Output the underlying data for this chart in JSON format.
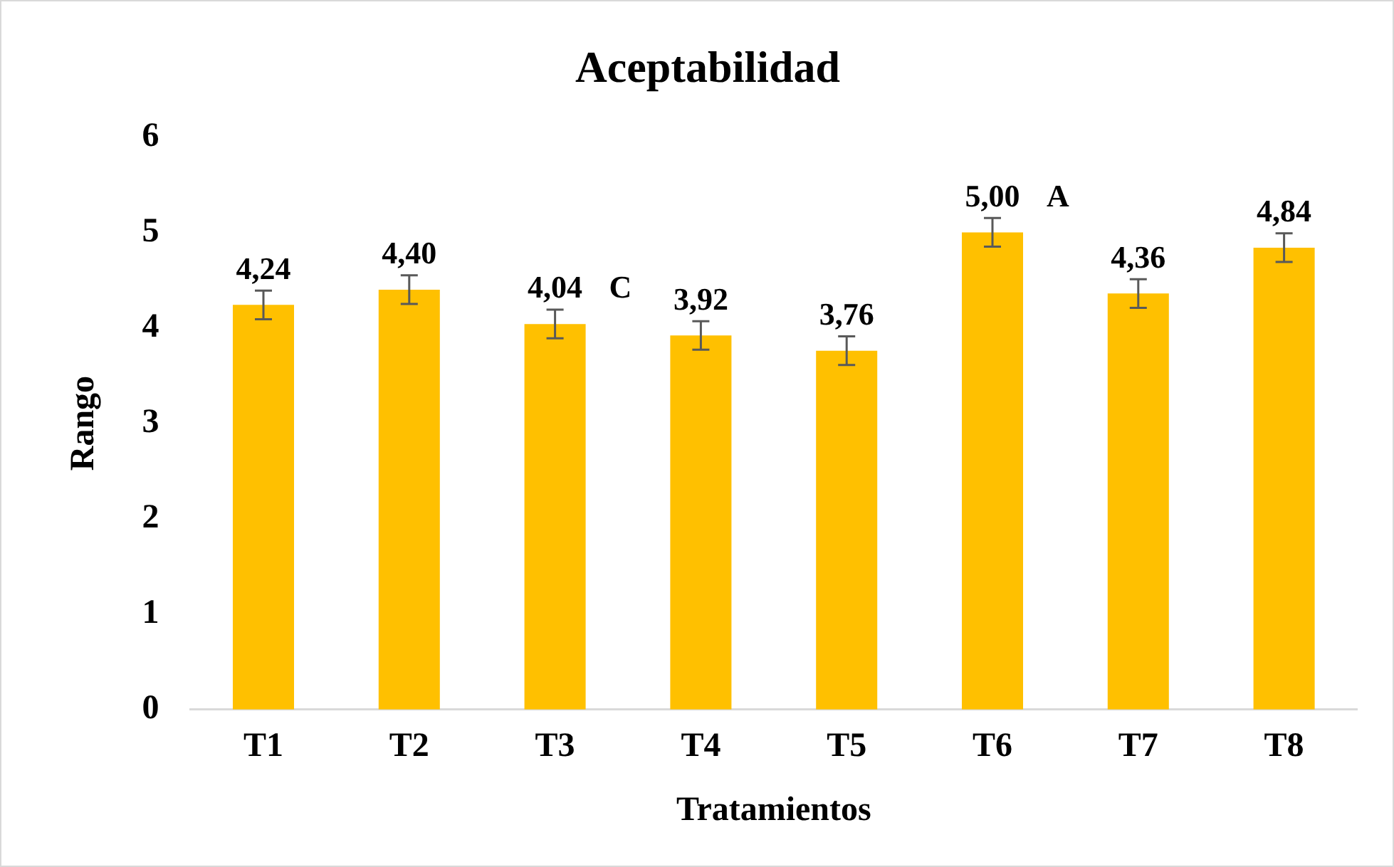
{
  "chart_data": {
    "type": "bar",
    "title": "Aceptabilidad",
    "xlabel": "Tratamientos",
    "ylabel": "Rango",
    "categories": [
      "T1",
      "T2",
      "T3",
      "T4",
      "T5",
      "T6",
      "T7",
      "T8"
    ],
    "values": [
      4.24,
      4.4,
      4.04,
      3.92,
      3.76,
      5.0,
      4.36,
      4.84
    ],
    "value_labels": [
      "4,24",
      "4,40",
      "4,04",
      "3,92",
      "3,76",
      "5,00",
      "4,36",
      "4,84"
    ],
    "errors": [
      0.15,
      0.15,
      0.15,
      0.15,
      0.15,
      0.15,
      0.15,
      0.15
    ],
    "color": "#ffc000",
    "ylim": [
      0,
      6
    ],
    "yticks": [
      0,
      1,
      2,
      3,
      4,
      5,
      6
    ],
    "grid": false,
    "legend": false,
    "annotations": [
      {
        "text": "C",
        "x": "T3",
        "y": 4.04
      },
      {
        "text": "A",
        "x": "T6",
        "y": 5.0
      }
    ]
  }
}
